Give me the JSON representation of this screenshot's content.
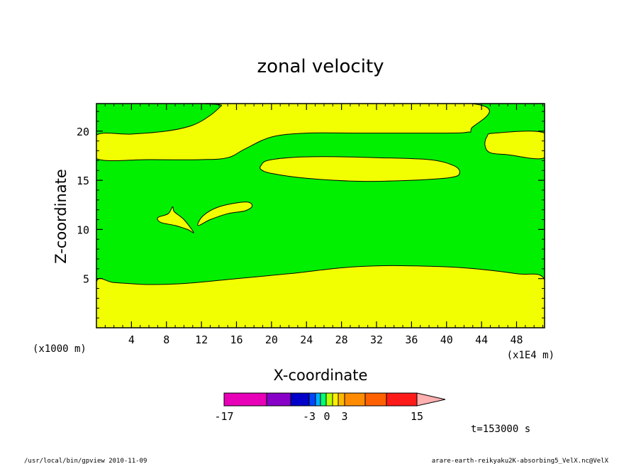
{
  "chart_data": {
    "type": "heatmap",
    "title": "zonal velocity",
    "xlabel": "X-coordinate",
    "ylabel": "Z-coordinate",
    "x_unit_label": "(x1E4 m)",
    "y_unit_label": "(x1000 m)",
    "xlim": [
      0,
      51.2
    ],
    "ylim": [
      0,
      22.8
    ],
    "x_ticks": [
      4,
      8,
      12,
      16,
      20,
      24,
      28,
      32,
      36,
      40,
      44,
      48
    ],
    "y_ticks": [
      5,
      10,
      15,
      20
    ],
    "x_tick_labels": [
      "4",
      "8",
      "12",
      "16",
      "20",
      "24",
      "28",
      "32",
      "36",
      "40",
      "44",
      "48"
    ],
    "y_tick_labels": [
      "5",
      "10",
      "15",
      "20"
    ],
    "regions": [
      {
        "name": "bottom-yellow",
        "color": "#f2ff00",
        "points": [
          [
            0,
            0
          ],
          [
            51.2,
            0
          ],
          [
            51.2,
            4.9
          ],
          [
            48,
            5.5
          ],
          [
            42,
            6.1
          ],
          [
            36,
            6.3
          ],
          [
            32,
            6.3
          ],
          [
            28,
            6.1
          ],
          [
            22,
            5.5
          ],
          [
            16,
            5.0
          ],
          [
            10,
            4.5
          ],
          [
            6,
            4.4
          ],
          [
            2,
            4.6
          ],
          [
            0,
            4.7
          ]
        ]
      },
      {
        "name": "upper-yellow-band",
        "color": "#f2ff00",
        "points": [
          [
            0,
            19.6
          ],
          [
            4,
            19.7
          ],
          [
            8,
            20.0
          ],
          [
            11,
            20.6
          ],
          [
            13,
            21.6
          ],
          [
            14.3,
            22.6
          ],
          [
            14.5,
            22.8
          ],
          [
            42.8,
            22.8
          ],
          [
            42.8,
            20.2
          ],
          [
            42.4,
            19.9
          ],
          [
            40,
            19.8
          ],
          [
            30,
            19.8
          ],
          [
            24,
            19.8
          ],
          [
            20,
            19.4
          ],
          [
            17,
            18.2
          ],
          [
            15,
            17.3
          ],
          [
            12,
            17.1
          ],
          [
            6,
            17.1
          ],
          [
            0,
            17.2
          ]
        ]
      },
      {
        "name": "mid-ellipse",
        "color": "#f2ff00",
        "points": [
          [
            18.8,
            16.5
          ],
          [
            19.5,
            17.0
          ],
          [
            22,
            17.3
          ],
          [
            26,
            17.4
          ],
          [
            32,
            17.3
          ],
          [
            38,
            17.1
          ],
          [
            40.8,
            16.5
          ],
          [
            41.5,
            15.8
          ],
          [
            40.6,
            15.3
          ],
          [
            36,
            15.0
          ],
          [
            30,
            14.9
          ],
          [
            24,
            15.2
          ],
          [
            20,
            15.7
          ],
          [
            18.8,
            16.1
          ]
        ]
      },
      {
        "name": "right-yellow-blob",
        "color": "#f2ff00",
        "points": [
          [
            51.2,
            19.8
          ],
          [
            45.5,
            19.8
          ],
          [
            44.6,
            19.4
          ],
          [
            44.4,
            18.5
          ],
          [
            45,
            17.8
          ],
          [
            47,
            17.6
          ],
          [
            51.2,
            17.3
          ]
        ]
      },
      {
        "name": "small-triangle",
        "color": "#f2ff00",
        "points": [
          [
            7,
            11.2
          ],
          [
            8.2,
            11.6
          ],
          [
            8.7,
            12.3
          ],
          [
            8.9,
            11.8
          ],
          [
            10,
            11.0
          ],
          [
            11.1,
            9.7
          ],
          [
            10.4,
            10.0
          ],
          [
            9,
            10.4
          ],
          [
            7.4,
            10.7
          ]
        ]
      },
      {
        "name": "small-wedge",
        "color": "#f2ff00",
        "points": [
          [
            11.6,
            10.4
          ],
          [
            12.2,
            11.4
          ],
          [
            14,
            12.3
          ],
          [
            17,
            12.8
          ],
          [
            17.8,
            12.4
          ],
          [
            17,
            11.9
          ],
          [
            15,
            11.6
          ],
          [
            13,
            11.0
          ]
        ]
      }
    ],
    "background_color": "#00f000",
    "colorbar": {
      "tick_labels": [
        "-17",
        "-3",
        "0",
        "3",
        "15"
      ],
      "colors": [
        "#e800b8",
        "#8800c8",
        "#0000c8",
        "#0046ff",
        "#00b0ff",
        "#00ff70",
        "#b8ff00",
        "#fff000",
        "#ffb800",
        "#ff8c00",
        "#ff6000",
        "#ff1a1a",
        "#ff8080",
        "#ffb0b0"
      ]
    },
    "time_label": "t=153000 s"
  },
  "footer": {
    "left": "/usr/local/bin/gpview  2010-11-09",
    "right": "arare-earth-reikyaku2K-absorbing5_VelX.nc@VelX"
  }
}
